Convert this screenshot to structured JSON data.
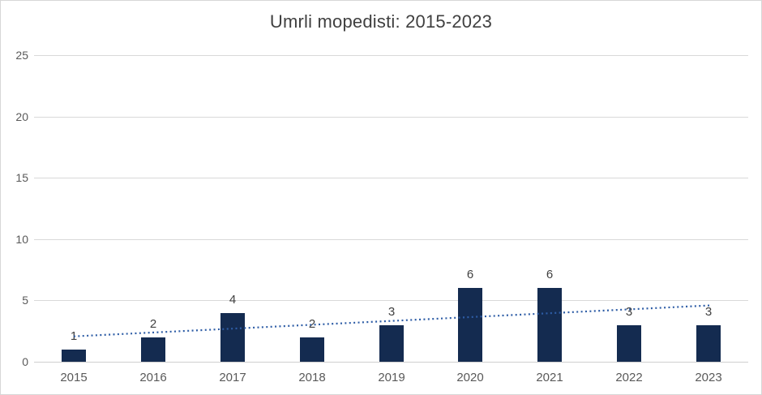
{
  "chart_data": {
    "type": "bar",
    "title": "Umrli mopedisti: 2015-2023",
    "categories": [
      "2015",
      "2016",
      "2017",
      "2018",
      "2019",
      "2020",
      "2021",
      "2022",
      "2023"
    ],
    "values": [
      1,
      2,
      4,
      2,
      3,
      6,
      6,
      3,
      3
    ],
    "data_labels": [
      1,
      2,
      4,
      2,
      3,
      6,
      6,
      3,
      3
    ],
    "xlabel": "",
    "ylabel": "",
    "ylim": [
      0,
      25
    ],
    "yticks": [
      0,
      5,
      10,
      15,
      20,
      25
    ],
    "grid": "horizontal",
    "legend": "none",
    "trendline": {
      "type": "linear",
      "style": "dotted",
      "start_value": 2.07,
      "end_value": 4.6,
      "color": "#2e5da6"
    },
    "colors": {
      "bar_fill": "#142b50",
      "title_text": "#404040",
      "data_label_text": "#404040",
      "axis_tick_text": "#595959",
      "gridline": "#d9d9d9",
      "axis_line": "#d0d0d0",
      "background": "#ffffff",
      "frame_border": "#d7d7d7"
    }
  }
}
